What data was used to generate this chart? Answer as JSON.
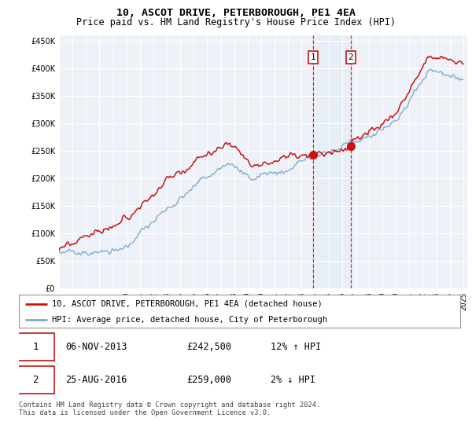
{
  "title1": "10, ASCOT DRIVE, PETERBOROUGH, PE1 4EA",
  "title2": "Price paid vs. HM Land Registry's House Price Index (HPI)",
  "background_color": "#ffffff",
  "plot_bg_color": "#eef2f8",
  "grid_color": "#ffffff",
  "legend_label_red": "10, ASCOT DRIVE, PETERBOROUGH, PE1 4EA (detached house)",
  "legend_label_blue": "HPI: Average price, detached house, City of Peterborough",
  "sale1_date": "06-NOV-2013",
  "sale1_price": "£242,500",
  "sale1_hpi": "12% ↑ HPI",
  "sale2_date": "25-AUG-2016",
  "sale2_price": "£259,000",
  "sale2_hpi": "2% ↓ HPI",
  "footnote": "Contains HM Land Registry data © Crown copyright and database right 2024.\nThis data is licensed under the Open Government Licence v3.0.",
  "sale1_year": 2013.85,
  "sale2_year": 2016.65,
  "sale1_value": 242500,
  "sale2_value": 259000,
  "ylim_min": 0,
  "ylim_max": 460000,
  "red_color": "#cc1111",
  "blue_color": "#7aaad0"
}
